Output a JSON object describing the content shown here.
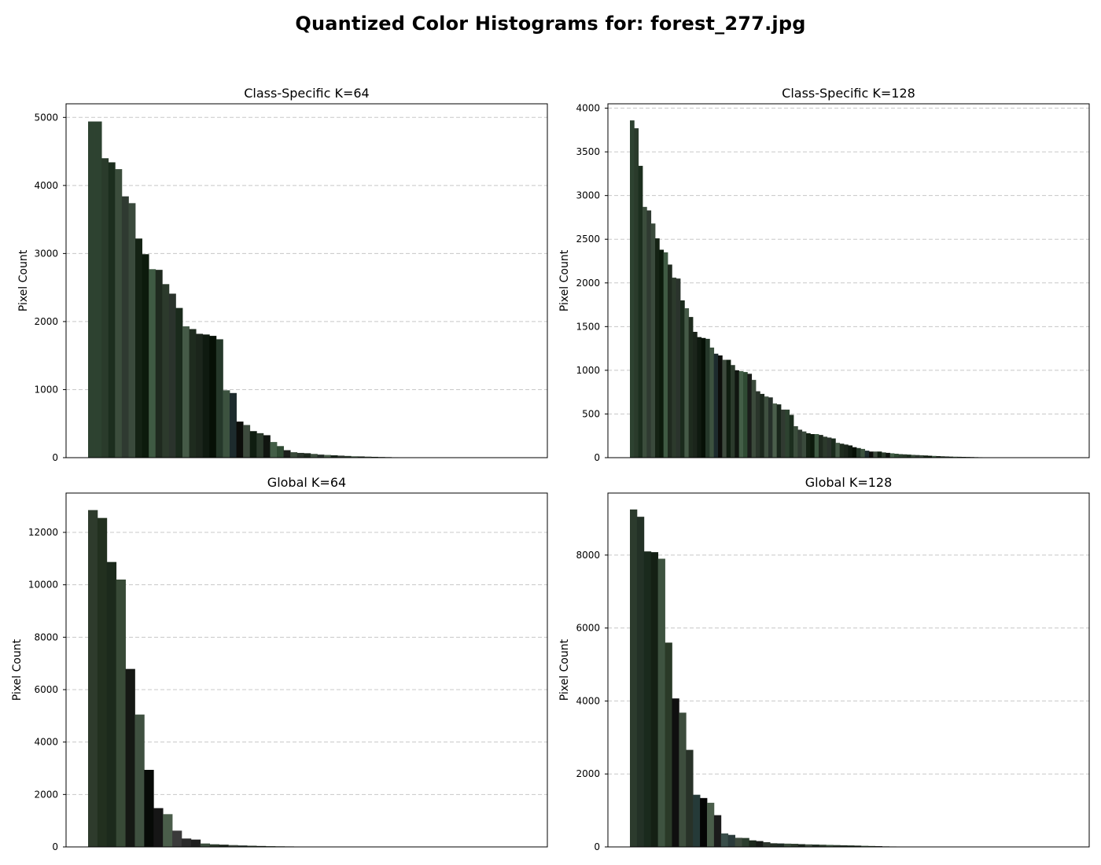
{
  "title": "Quantized Color Histograms for: forest_277.jpg",
  "chart_data": [
    {
      "type": "bar",
      "title": "Class-Specific K=64",
      "ylabel": "Pixel Count",
      "xlabel": "",
      "ylim": [
        0,
        5200
      ],
      "yticks": [
        0,
        1000,
        2000,
        3000,
        4000,
        5000
      ],
      "grid": "y-dashed",
      "values": [
        4940,
        4940,
        4400,
        4340,
        4240,
        3840,
        3740,
        3220,
        2990,
        2770,
        2760,
        2550,
        2410,
        2200,
        1930,
        1890,
        1820,
        1810,
        1790,
        1740,
        990,
        950,
        530,
        480,
        390,
        360,
        330,
        230,
        170,
        110,
        80,
        70,
        65,
        55,
        45,
        40,
        35,
        30,
        25,
        20,
        18,
        15,
        12,
        10,
        8,
        6,
        5,
        4,
        3,
        2,
        2,
        1,
        1,
        1,
        1,
        1,
        0,
        0,
        0,
        0,
        0,
        0,
        0,
        0
      ],
      "colors": [
        "#2d4230",
        "#2d4230",
        "#2a3b2b",
        "#1c2e1e",
        "#3b4d3c",
        "#2f3a31",
        "#3a4a3c",
        "#142214",
        "#0c1a0c",
        "#3f5a43",
        "#1f2a1f",
        "#2c3a2c",
        "#2a332c",
        "#1a2a1c",
        "#455a47",
        "#1e2b1e",
        "#1b251b",
        "#0f1a10",
        "#061006",
        "#25382a",
        "#3c523f",
        "#1d2b2d",
        "#0c0d0a",
        "#3d4a3d",
        "#0f1d10",
        "#2b3a2c",
        "#101510",
        "#435e47",
        "#2f4a33",
        "#1a1d1a",
        "#3b4a3b",
        "#2a352b",
        "#1c281d",
        "#3f5040",
        "#26302a",
        "#4a5e4b",
        "#19261b",
        "#303a31",
        "#2b3a2c",
        "#455a47",
        "#1f2a1f",
        "#3a4a3c",
        "#142214",
        "#2c3a2c",
        "#1e2b1e",
        "#3b4d3c",
        "#0f1a10",
        "#2a332c",
        "#25382a",
        "#1a2a1c",
        "#3f5a43",
        "#2d4230",
        "#1c2e1e",
        "#2f3a31",
        "#455a47",
        "#0c1a0c",
        "#2a3b2b",
        "#3c523f",
        "#1d2b2d",
        "#0c0d0a",
        "#3d4a3d",
        "#0f1d10",
        "#2b3a2c",
        "#101510"
      ]
    },
    {
      "type": "bar",
      "title": "Class-Specific K=128",
      "ylabel": "Pixel Count",
      "xlabel": "",
      "ylim": [
        0,
        4050
      ],
      "yticks": [
        0,
        500,
        1000,
        1500,
        2000,
        2500,
        3000,
        3500,
        4000
      ],
      "grid": "y-dashed",
      "values": [
        3860,
        3770,
        3340,
        2870,
        2830,
        2680,
        2510,
        2380,
        2350,
        2210,
        2060,
        2050,
        1800,
        1710,
        1610,
        1440,
        1380,
        1370,
        1360,
        1260,
        1190,
        1170,
        1120,
        1120,
        1060,
        1000,
        990,
        980,
        960,
        890,
        760,
        730,
        700,
        690,
        620,
        610,
        550,
        550,
        490,
        360,
        320,
        300,
        280,
        270,
        270,
        260,
        240,
        230,
        220,
        170,
        160,
        150,
        140,
        120,
        110,
        100,
        80,
        70,
        70,
        70,
        60,
        55,
        50,
        45,
        40,
        38,
        35,
        32,
        30,
        28,
        25,
        22,
        20,
        18,
        16,
        14,
        12,
        11,
        10,
        9,
        8,
        7,
        6,
        5,
        4,
        4,
        3,
        3,
        2,
        2,
        2,
        1,
        1,
        1,
        1,
        1,
        0,
        0,
        0,
        0,
        0,
        0,
        0,
        0,
        0,
        0,
        0,
        0,
        0,
        0,
        0,
        0,
        0,
        0,
        0,
        0,
        0,
        0,
        0,
        0,
        0,
        0,
        0,
        0,
        0,
        0,
        0,
        0
      ],
      "colors": [
        "#2d4230",
        "#2a3b2b",
        "#1c2e1e",
        "#3b4d3c",
        "#2f3a31",
        "#3a4a3c",
        "#142214",
        "#0c1a0c",
        "#3f5a43",
        "#1f2a1f",
        "#2c3a2c",
        "#2a332c",
        "#1a2a1c",
        "#455a47",
        "#1e2b1e",
        "#1b251b",
        "#0f1a10",
        "#061006",
        "#25382a",
        "#3c523f",
        "#1d2b2d",
        "#0c0d0a",
        "#3d4a3d",
        "#0f1d10",
        "#2b3a2c",
        "#101510",
        "#435e47",
        "#2f4a33",
        "#1a1d1a",
        "#3b4a3b",
        "#2a352b",
        "#1c281d",
        "#3f5040",
        "#26302a",
        "#4a5e4b",
        "#19261b",
        "#303a31",
        "#2d4230",
        "#1c2e1e",
        "#3b4d3c",
        "#2f3a31",
        "#3a4a3c",
        "#142214",
        "#0c1a0c",
        "#3f5a43",
        "#1f2a1f",
        "#2c3a2c",
        "#2a332c",
        "#1a2a1c",
        "#455a47",
        "#1e2b1e",
        "#1b251b",
        "#0f1a10",
        "#061006",
        "#25382a",
        "#3c523f",
        "#1d2b2d",
        "#0c0d0a",
        "#3d4a3d",
        "#0f1d10",
        "#2b3a2c",
        "#101510",
        "#435e47",
        "#2f4a33",
        "#2d4230",
        "#2a3b2b",
        "#1c2e1e",
        "#3b4d3c",
        "#2f3a31",
        "#3a4a3c",
        "#142214",
        "#0c1a0c",
        "#3f5a43",
        "#1f2a1f",
        "#2c3a2c",
        "#2a332c",
        "#1a2a1c",
        "#455a47",
        "#1e2b1e",
        "#1b251b",
        "#0f1a10",
        "#061006",
        "#25382a",
        "#3c523f",
        "#1d2b2d",
        "#0c0d0a",
        "#3d4a3d",
        "#0f1d10",
        "#2b3a2c",
        "#101510",
        "#435e47",
        "#2f4a33",
        "#1a1d1a",
        "#3b4a3b",
        "#2a352b",
        "#1c281d",
        "#3f5040",
        "#26302a",
        "#4a5e4b",
        "#19261b",
        "#303a31",
        "#2d4230",
        "#1c2e1e",
        "#3b4d3c",
        "#2f3a31",
        "#3a4a3c",
        "#142214",
        "#0c1a0c",
        "#3f5a43",
        "#1f2a1f",
        "#2c3a2c",
        "#2a332c",
        "#1a2a1c",
        "#455a47",
        "#1e2b1e",
        "#1b251b",
        "#0f1a10",
        "#061006",
        "#25382a",
        "#3c523f",
        "#1d2b2d",
        "#0c0d0a",
        "#3d4a3d",
        "#0f1d10",
        "#2b3a2c",
        "#101510",
        "#435e47",
        "#2f4a33"
      ]
    },
    {
      "type": "bar",
      "title": "Global K=64",
      "ylabel": "Pixel Count",
      "xlabel": "",
      "ylim": [
        0,
        13500
      ],
      "yticks": [
        0,
        2000,
        4000,
        6000,
        8000,
        10000,
        12000
      ],
      "grid": "y-dashed",
      "values": [
        12850,
        12550,
        10870,
        10200,
        6790,
        5050,
        2940,
        1480,
        1250,
        620,
        320,
        280,
        130,
        100,
        85,
        70,
        55,
        45,
        35,
        28,
        22,
        18,
        14,
        11,
        9,
        7,
        6,
        5,
        4,
        3,
        2,
        2,
        1,
        1,
        1,
        1,
        1,
        0,
        0,
        0,
        0,
        0,
        0,
        0,
        0,
        0,
        0,
        0,
        0,
        0,
        0,
        0,
        0,
        0,
        0,
        0,
        0,
        0,
        0,
        0,
        0,
        0,
        0,
        0
      ],
      "colors": [
        "#2e3b2c",
        "#22301f",
        "#1c2a1c",
        "#384a37",
        "#151814",
        "#3f5040",
        "#070a07",
        "#161616",
        "#4a5d4a",
        "#3a3a3a",
        "#2a2a2a",
        "#1e1e1e",
        "#3d4f3f",
        "#2b3a2c",
        "#1a251b",
        "#404a40",
        "#23302a",
        "#2d3b2d",
        "#1c281d",
        "#3a4a3a",
        "#2e3b2c",
        "#22301f",
        "#1c2a1c",
        "#384a37",
        "#151814",
        "#3f5040",
        "#070a07",
        "#161616",
        "#4a5d4a",
        "#3a3a3a",
        "#2a2a2a",
        "#1e1e1e",
        "#3d4f3f",
        "#2b3a2c",
        "#1a251b",
        "#404a40",
        "#23302a",
        "#2d3b2d",
        "#1c281d",
        "#3a4a3a",
        "#2e3b2c",
        "#22301f",
        "#1c2a1c",
        "#384a37",
        "#151814",
        "#3f5040",
        "#070a07",
        "#161616",
        "#4a5d4a",
        "#3a3a3a",
        "#2a2a2a",
        "#1e1e1e",
        "#3d4f3f",
        "#2b3a2c",
        "#1a251b",
        "#404a40",
        "#23302a",
        "#2d3b2d",
        "#1c281d",
        "#3a4a3a",
        "#2e3b2c",
        "#22301f",
        "#1c2a1c",
        "#384a37"
      ]
    },
    {
      "type": "bar",
      "title": "Global K=128",
      "ylabel": "Pixel Count",
      "xlabel": "",
      "ylim": [
        0,
        9700
      ],
      "yticks": [
        0,
        2000,
        4000,
        6000,
        8000
      ],
      "grid": "y-dashed",
      "values": [
        9250,
        9050,
        8100,
        8080,
        7900,
        5600,
        4070,
        3680,
        2660,
        1430,
        1340,
        1210,
        870,
        370,
        330,
        250,
        245,
        180,
        160,
        130,
        100,
        95,
        90,
        85,
        75,
        70,
        65,
        60,
        55,
        50,
        45,
        40,
        35,
        30,
        25,
        20,
        15,
        12,
        10,
        8,
        7,
        6,
        5,
        4,
        3,
        3,
        2,
        2,
        1,
        1,
        1,
        1,
        1,
        0,
        0,
        0,
        0,
        0,
        0,
        0,
        0,
        0,
        0,
        0,
        0,
        0,
        0,
        0,
        0,
        0,
        0,
        0,
        0,
        0,
        0,
        0,
        0,
        0,
        0,
        0,
        0,
        0,
        0,
        0,
        0,
        0,
        0,
        0,
        0,
        0,
        0,
        0,
        0,
        0,
        0,
        0,
        0,
        0,
        0,
        0,
        0,
        0,
        0,
        0,
        0,
        0,
        0,
        0,
        0,
        0,
        0,
        0,
        0,
        0,
        0,
        0,
        0,
        0,
        0,
        0,
        0,
        0,
        0,
        0,
        0,
        0,
        0,
        0
      ],
      "colors": [
        "#2c3b2d",
        "#233126",
        "#1a2a1d",
        "#142014",
        "#3e5340",
        "#2a3a28",
        "#0f0f0f",
        "#3d4d3d",
        "#283228",
        "#253a38",
        "#050505",
        "#4a5d4a",
        "#1b1b1b",
        "#3a4e4a",
        "#2a3a3a",
        "#3d4a3d",
        "#2b3d2e",
        "#1c281c",
        "#161a16",
        "#303830",
        "#252f25",
        "#1f2c24",
        "#3a4a3b",
        "#2e3b2d",
        "#1a251b",
        "#424e42",
        "#233126",
        "#2f3f30",
        "#3e5340",
        "#2c3b2d",
        "#233126",
        "#1a2a1d",
        "#142014",
        "#3e5340",
        "#2a3a28",
        "#0f0f0f",
        "#3d4d3d",
        "#283228",
        "#253a38",
        "#050505",
        "#4a5d4a",
        "#1b1b1b",
        "#3a4e4a",
        "#2a3a3a",
        "#3d4a3d",
        "#2b3d2e",
        "#1c281c",
        "#161a16",
        "#303830",
        "#252f25",
        "#1f2c24",
        "#3a4a3b",
        "#2e3b2d",
        "#1a251b",
        "#424e42",
        "#233126",
        "#2f3f30",
        "#3e5340",
        "#2c3b2d",
        "#233126",
        "#1a2a1d",
        "#142014",
        "#3e5340",
        "#2a3a28",
        "#0f0f0f",
        "#3d4d3d",
        "#283228",
        "#253a38",
        "#050505",
        "#4a5d4a",
        "#1b1b1b",
        "#3a4e4a",
        "#2a3a3a",
        "#3d4a3d",
        "#2b3d2e",
        "#1c281c",
        "#161a16",
        "#303830",
        "#252f25",
        "#1f2c24",
        "#3a4a3b",
        "#2e3b2d",
        "#1a251b",
        "#424e42",
        "#233126",
        "#2f3f30",
        "#3e5340",
        "#2c3b2d",
        "#233126",
        "#1a2a1d",
        "#142014",
        "#3e5340",
        "#2a3a28",
        "#0f0f0f",
        "#3d4d3d",
        "#283228",
        "#253a38",
        "#050505",
        "#4a5d4a",
        "#1b1b1b",
        "#3a4e4a",
        "#2a3a3a",
        "#3d4a3d",
        "#2b3d2e",
        "#1c281c",
        "#161a16",
        "#303830",
        "#252f25",
        "#1f2c24",
        "#3a4a3b",
        "#2e3b2d",
        "#1a251b",
        "#424e42",
        "#233126",
        "#2f3f30",
        "#3e5340",
        "#2c3b2d",
        "#233126",
        "#1a2a1d",
        "#142014",
        "#3e5340",
        "#2a3a28",
        "#0f0f0f",
        "#3d4d3d",
        "#283228",
        "#253a38",
        "#050505",
        "#4a5d4a"
      ]
    }
  ]
}
